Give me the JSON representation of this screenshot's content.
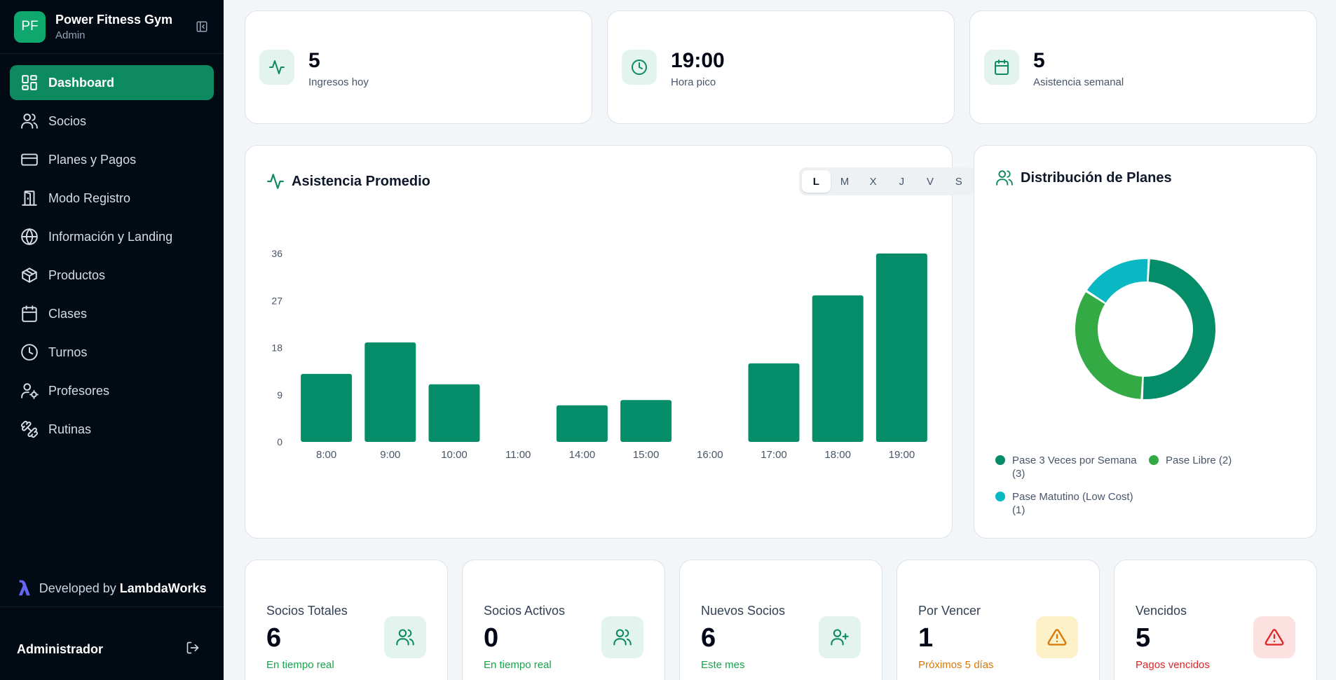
{
  "brand": {
    "initials": "PF",
    "name": "Power Fitness Gym",
    "role": "Admin"
  },
  "nav": [
    {
      "label": "Dashboard",
      "icon": "dashboard-icon",
      "active": true
    },
    {
      "label": "Socios",
      "icon": "users-icon"
    },
    {
      "label": "Planes y Pagos",
      "icon": "credit-card-icon"
    },
    {
      "label": "Modo Registro",
      "icon": "door-icon"
    },
    {
      "label": "Información y Landing",
      "icon": "globe-icon"
    },
    {
      "label": "Productos",
      "icon": "package-icon"
    },
    {
      "label": "Clases",
      "icon": "calendar-icon"
    },
    {
      "label": "Turnos",
      "icon": "clock-icon"
    },
    {
      "label": "Profesores",
      "icon": "user-cog-icon"
    },
    {
      "label": "Rutinas",
      "icon": "dumbbell-icon"
    }
  ],
  "footer": {
    "developed_by": "Developed by",
    "company": "LambdaWorks",
    "user": "Administrador"
  },
  "kpis": [
    {
      "value": "5",
      "label": "Ingresos hoy",
      "icon": "activity-icon"
    },
    {
      "value": "19:00",
      "label": "Hora pico",
      "icon": "clock-icon"
    },
    {
      "value": "5",
      "label": "Asistencia semanal",
      "icon": "calendar-icon"
    }
  ],
  "attendance": {
    "title": "Asistencia Promedio",
    "days": [
      "L",
      "M",
      "X",
      "J",
      "V",
      "S"
    ],
    "selected_day": "L"
  },
  "plans": {
    "title": "Distribución de Planes",
    "legend": [
      {
        "line1": "Pase 3 Veces por Semana",
        "line2": "(3)",
        "color": "#058c69"
      },
      {
        "line1": "Pase Libre (2)",
        "line2": "",
        "color": "#34aa44"
      },
      {
        "line1": "Pase Matutino (Low Cost)",
        "line2": "(1)",
        "color": "#0ab8c4"
      }
    ]
  },
  "stats": [
    {
      "title": "Socios Totales",
      "value": "6",
      "sub": "En tiempo real",
      "sub_color": "#16a34a",
      "icon": "users-icon",
      "bg": "#e3f3ee",
      "fg": "#0e8a61"
    },
    {
      "title": "Socios Activos",
      "value": "0",
      "sub": "En tiempo real",
      "sub_color": "#16a34a",
      "icon": "users-icon",
      "bg": "#e3f3ee",
      "fg": "#0e8a61"
    },
    {
      "title": "Nuevos Socios",
      "value": "6",
      "sub": "Este mes",
      "sub_color": "#16a34a",
      "icon": "user-plus-icon",
      "bg": "#e3f3ee",
      "fg": "#0e8a61"
    },
    {
      "title": "Por Vencer",
      "value": "1",
      "sub": "Próximos 5 días",
      "sub_color": "#d97706",
      "icon": "warning-icon",
      "bg": "#fdf1c7",
      "fg": "#d97706"
    },
    {
      "title": "Vencidos",
      "value": "5",
      "sub": "Pagos vencidos",
      "sub_color": "#dc2626",
      "icon": "alert-icon",
      "bg": "#fde1e1",
      "fg": "#dc2626"
    }
  ],
  "chart_data": [
    {
      "type": "bar",
      "title": "Asistencia Promedio",
      "categories": [
        "8:00",
        "9:00",
        "10:00",
        "11:00",
        "14:00",
        "15:00",
        "16:00",
        "17:00",
        "18:00",
        "19:00"
      ],
      "values": [
        13,
        19,
        11,
        0,
        7,
        8,
        0,
        15,
        28,
        36
      ],
      "ylim": [
        0,
        36
      ],
      "yticks": [
        0,
        9,
        18,
        27,
        36
      ],
      "color": "#058c69",
      "grid": false
    },
    {
      "type": "pie",
      "title": "Distribución de Planes",
      "labels": [
        "Pase 3 Veces por Semana",
        "Pase Libre",
        "Pase Matutino (Low Cost)"
      ],
      "values": [
        3,
        2,
        1
      ],
      "colors": [
        "#058c69",
        "#34aa44",
        "#0ab8c4"
      ],
      "donut": true,
      "legend": "bottom"
    }
  ]
}
